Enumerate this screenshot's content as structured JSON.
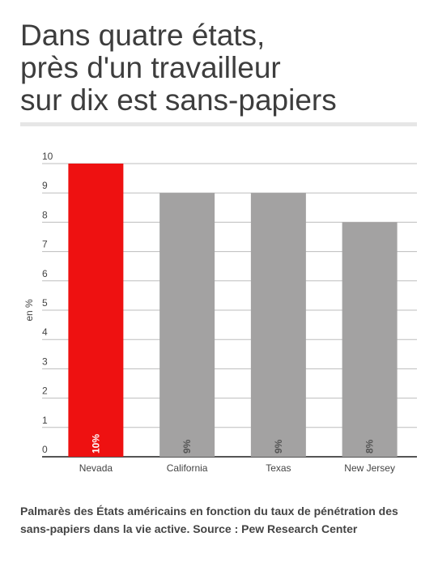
{
  "title_lines": [
    "Dans quatre états,",
    "près d'un travailleur",
    "sur dix est sans-papiers"
  ],
  "caption": "Palmarès des États américains en fonction du taux de pénétration des sans-papiers dans la vie active. Source : Pew Research Center",
  "colors": {
    "highlight": "#ee1111",
    "bar": "#a3a2a2",
    "grid": "#bdbdbd",
    "axis": "#555555"
  },
  "chart_data": {
    "type": "bar",
    "categories": [
      "Nevada",
      "California",
      "Texas",
      "New Jersey"
    ],
    "values": [
      10,
      9,
      9,
      8
    ],
    "data_labels": [
      "10%",
      "9%",
      "9%",
      "8%"
    ],
    "highlight_index": 0,
    "ylabel": "en %",
    "xlabel": "",
    "ylim": [
      0,
      10
    ],
    "yticks": [
      0,
      1,
      2,
      3,
      4,
      5,
      6,
      7,
      8,
      9,
      10
    ],
    "grid": true
  }
}
